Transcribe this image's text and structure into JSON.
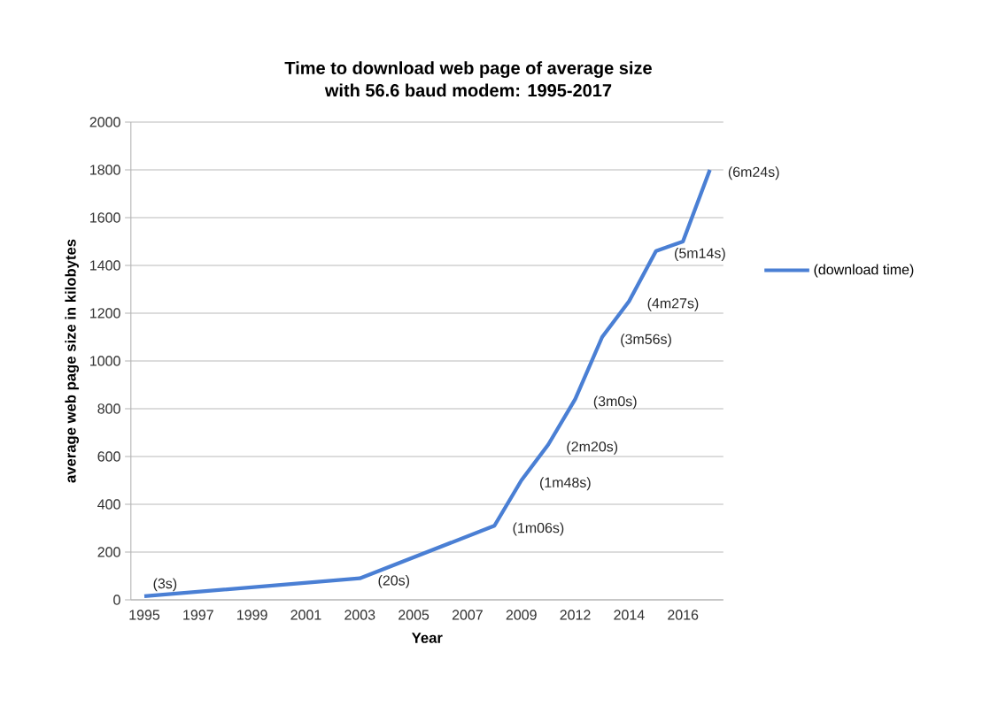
{
  "chart_data": {
    "type": "line",
    "title": "Time to download web page of average size\nwith 56.6 baud modem: 1995-2017",
    "xlabel": "Year",
    "ylabel": "average web page size in kilobytes",
    "categories": [
      "1995",
      null,
      "1997",
      null,
      "1999",
      null,
      "2001",
      null,
      "2003",
      null,
      "2005",
      null,
      "2007",
      null,
      "2009",
      null,
      "2012",
      null,
      "2014",
      null,
      "2016",
      null
    ],
    "series": [
      {
        "name": "(download time)",
        "color": "#4a7fd4",
        "values": [
          15,
          null,
          null,
          null,
          null,
          null,
          null,
          null,
          90,
          null,
          null,
          null,
          null,
          310,
          500,
          650,
          840,
          1100,
          1250,
          1460,
          1500,
          1800
        ],
        "value_labels": [
          null,
          null,
          null,
          null,
          null,
          null,
          null,
          null,
          null,
          null,
          null,
          null,
          null,
          "(1m06s)",
          "(1m48s)",
          "(2m20s)",
          "(3m0s)",
          "(3m56s)",
          "(4m27s)",
          "(5m14s)",
          null,
          "(6m24s)"
        ]
      }
    ],
    "annotations": [
      {
        "text": "(3s)",
        "x": "1995",
        "y": 15
      },
      {
        "text": "(20s)",
        "x": "2003",
        "y": 90
      }
    ],
    "ylim": [
      0,
      2000
    ],
    "yticks": [
      0,
      200,
      400,
      600,
      800,
      1000,
      1200,
      1400,
      1600,
      1800,
      2000
    ],
    "grid": "y",
    "legend": "right",
    "marker": "none",
    "line_style": "solid"
  }
}
